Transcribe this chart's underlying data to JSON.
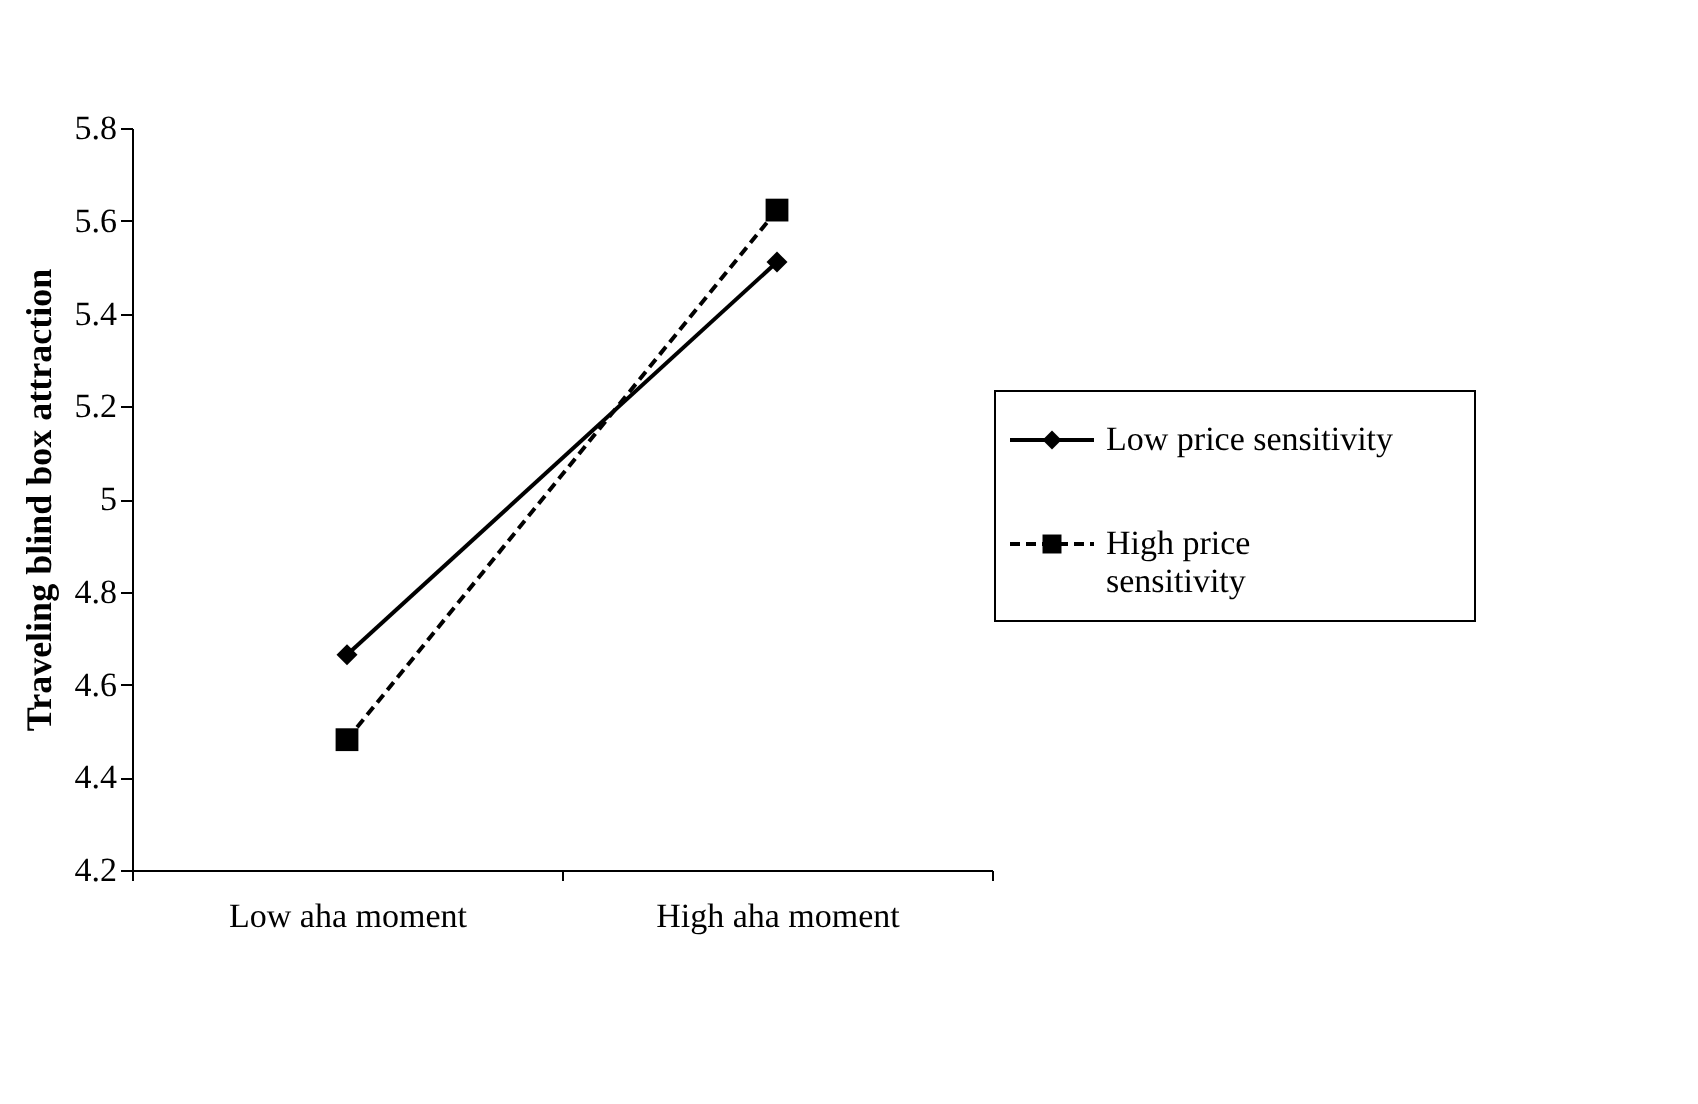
{
  "chart_data": {
    "type": "line",
    "ylabel": "Traveling blind box attraction",
    "categories": [
      "Low aha moment",
      "High aha moment"
    ],
    "series": [
      {
        "name": "Low price sensitivity",
        "color": "#000000",
        "values": [
          4.664,
          5.511
        ],
        "marker": "diamond",
        "line_style": "solid"
      },
      {
        "name": "High price sensitivity",
        "color": "#000000",
        "values": [
          4.481,
          5.623
        ],
        "marker": "square",
        "line_style": "dashed"
      }
    ],
    "ylim": [
      4.2,
      5.8
    ],
    "yticks": [
      4.2,
      4.4,
      4.6,
      4.8,
      5,
      5.2,
      5.4,
      5.6,
      5.8
    ],
    "grid": false,
    "legend": "right"
  }
}
